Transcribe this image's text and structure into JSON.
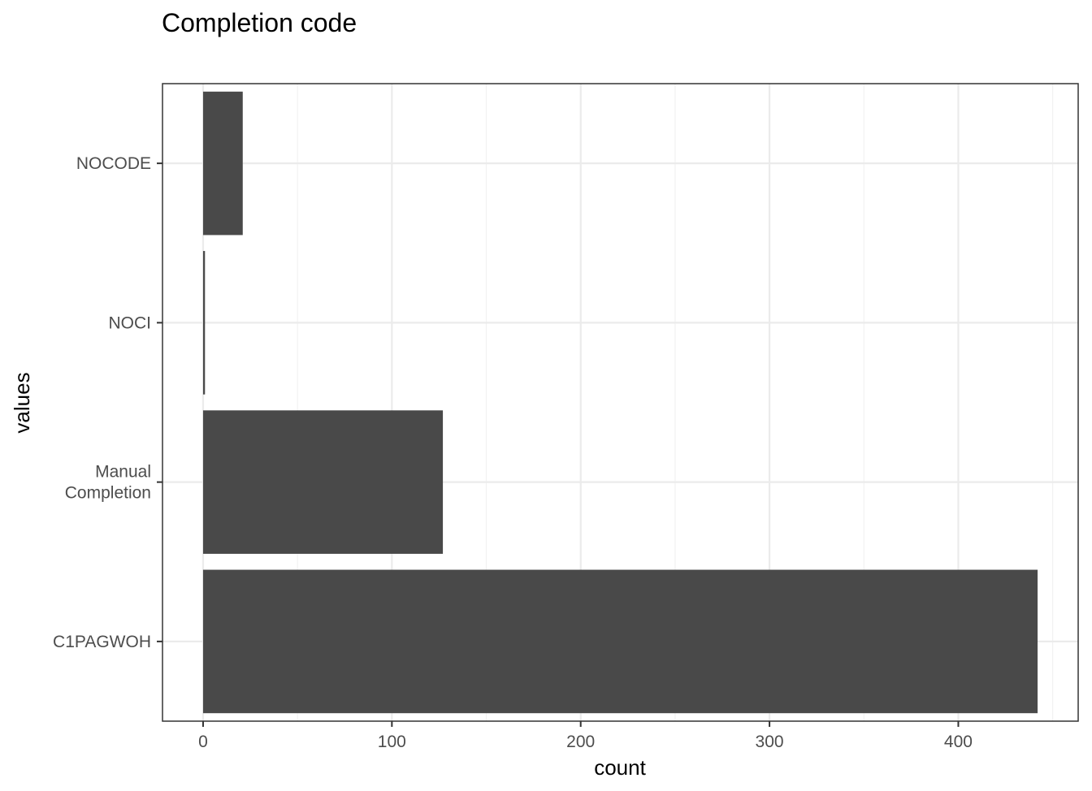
{
  "chart_data": {
    "type": "bar",
    "orientation": "horizontal",
    "title": "Completion code",
    "xlabel": "count",
    "ylabel": "values",
    "categories": [
      "NOCODE",
      "NOCI",
      "Manual\nCompletion",
      "C1PAGWOH"
    ],
    "values": [
      21,
      1,
      127,
      442
    ],
    "xlim": [
      -21.5,
      463.5
    ],
    "xticks": [
      0,
      100,
      200,
      300,
      400
    ],
    "grid": true,
    "legend": "none",
    "colors": {
      "bar": "#494949",
      "grid_major": "#ebebeb",
      "grid_minor": "#f2f2f2",
      "panel_border": "#333333",
      "tick": "#333333"
    }
  }
}
